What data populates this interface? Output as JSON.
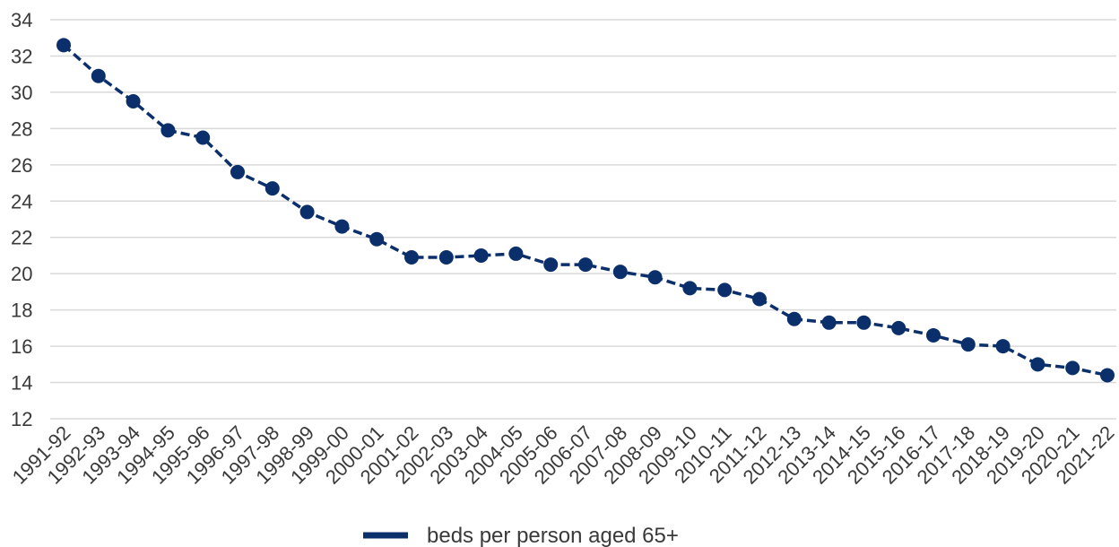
{
  "chart_data": {
    "type": "line",
    "title": "",
    "xlabel": "",
    "ylabel": "",
    "ylim": [
      12,
      34
    ],
    "y_ticks": [
      12,
      14,
      16,
      18,
      20,
      22,
      24,
      26,
      28,
      30,
      32,
      34
    ],
    "grid": "horizontal",
    "legend_position": "bottom-center",
    "categories": [
      "1991-92",
      "1992-93",
      "1993-94",
      "1994-95",
      "1995-96",
      "1996-97",
      "1997-98",
      "1998-99",
      "1999-00",
      "2000-01",
      "2001-02",
      "2002-03",
      "2003-04",
      "2004-05",
      "2005-06",
      "2006-07",
      "2007-08",
      "2008-09",
      "2009-10",
      "2010-11",
      "2011-12",
      "2012-13",
      "2013-14",
      "2014-15",
      "2015-16",
      "2016-17",
      "2017-18",
      "2018-19",
      "2019-20",
      "2020-21",
      "2021-22"
    ],
    "series": [
      {
        "name": "beds per person aged 65+",
        "color": "#0b2f6b",
        "line_style": "dashed",
        "marker": "circle",
        "values": [
          32.6,
          30.9,
          29.5,
          27.9,
          27.5,
          25.6,
          24.7,
          23.4,
          22.6,
          21.9,
          20.9,
          20.9,
          21.0,
          21.1,
          20.5,
          20.5,
          20.1,
          19.8,
          19.2,
          19.1,
          18.6,
          17.5,
          17.3,
          17.3,
          17.0,
          16.6,
          16.1,
          16.0,
          15.0,
          14.8,
          14.4
        ]
      }
    ]
  }
}
